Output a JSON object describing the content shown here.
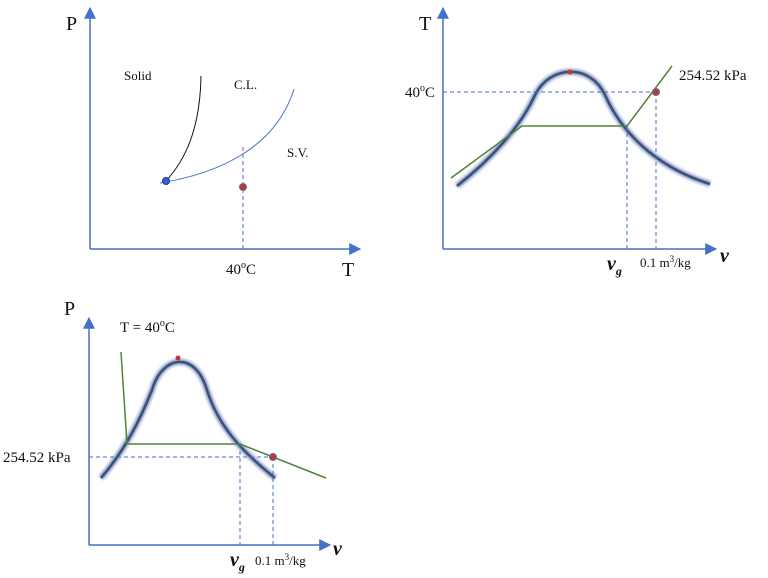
{
  "colors": {
    "axis": "#4472c4",
    "dashed": "#4472c4",
    "dome": "#6f7f9f",
    "isobar": "#548235",
    "point": "#c0392b",
    "triple_point": "#3b5bdb",
    "fusion_curve": "#111111"
  },
  "pt_diagram": {
    "y_axis_label": "P",
    "x_axis_label": "T",
    "region_solid": "Solid",
    "region_liquid": "C.L.",
    "region_vapor": "S.V.",
    "temperature_label": "40",
    "temperature_sup": "o",
    "temperature_unit": "C"
  },
  "tv_diagram": {
    "y_axis_label": "T",
    "x_axis_label": "v",
    "temperature_label": "40",
    "temperature_sup": "o",
    "temperature_unit": "C",
    "pressure_label": "254.52 kPa",
    "vg_label": "v",
    "vg_sub": "g",
    "specific_volume_label": "0.1 m",
    "specific_volume_sup": "3",
    "specific_volume_unit": "/kg"
  },
  "pv_diagram": {
    "y_axis_label": "P",
    "x_axis_label": "v",
    "isotherm_label": "T = 40",
    "isotherm_sup": "o",
    "isotherm_unit": "C",
    "pressure_label": "254.52 kPa",
    "vg_label": "v",
    "vg_sub": "g",
    "specific_volume_label": "0.1 m",
    "specific_volume_sup": "3",
    "specific_volume_unit": "/kg"
  }
}
